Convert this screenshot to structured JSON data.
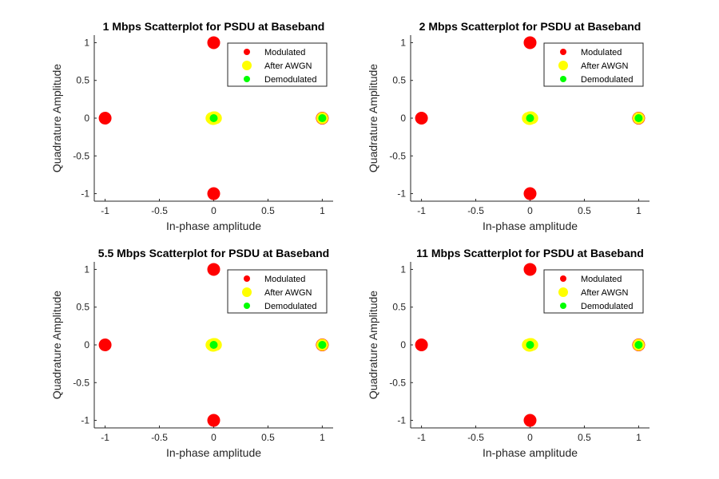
{
  "colors": {
    "modulated": "#ff0000",
    "after_awgn": "#ffff00",
    "demodulated": "#00ff00",
    "axis": "#262626"
  },
  "chart_data": [
    {
      "type": "scatter",
      "title": "1 Mbps Scatterplot for PSDU at Baseband",
      "xlabel": "In-phase amplitude",
      "ylabel": "Quadrature Amplitude",
      "xlim": [
        -1.1,
        1.1
      ],
      "ylim": [
        -1.1,
        1.1
      ],
      "xticks": [
        -1,
        -0.5,
        0,
        0.5,
        1
      ],
      "yticks": [
        -1,
        -0.5,
        0,
        0.5,
        1
      ],
      "xtick_labels": [
        "-1",
        "-0.5",
        "0",
        "0.5",
        "1"
      ],
      "ytick_labels": [
        "-1",
        "-0.5",
        "0",
        "0.5",
        "1"
      ],
      "grid": false,
      "legend": "top-right",
      "series": [
        {
          "name": "Modulated",
          "color": "#ff0000",
          "points": [
            [
              -1,
              0
            ],
            [
              1,
              0
            ],
            [
              0,
              1
            ],
            [
              0,
              -1
            ]
          ]
        },
        {
          "name": "After AWGN",
          "color": "#ffff00",
          "points": [
            [
              -0.02,
              0
            ],
            [
              0,
              0.01
            ],
            [
              0.02,
              0
            ],
            [
              0,
              -0.01
            ],
            [
              0.01,
              0.01
            ],
            [
              -0.01,
              -0.01
            ],
            [
              1,
              0
            ]
          ]
        },
        {
          "name": "Demodulated",
          "color": "#00ff00",
          "points": [
            [
              0,
              0
            ],
            [
              1,
              0
            ]
          ]
        }
      ]
    },
    {
      "type": "scatter",
      "title": "2 Mbps Scatterplot for PSDU at Baseband",
      "xlabel": "In-phase amplitude",
      "ylabel": "Quadrature Amplitude",
      "xlim": [
        -1.1,
        1.1
      ],
      "ylim": [
        -1.1,
        1.1
      ],
      "xticks": [
        -1,
        -0.5,
        0,
        0.5,
        1
      ],
      "yticks": [
        -1,
        -0.5,
        0,
        0.5,
        1
      ],
      "xtick_labels": [
        "-1",
        "-0.5",
        "0",
        "0.5",
        "1"
      ],
      "ytick_labels": [
        "-1",
        "-0.5",
        "0",
        "0.5",
        "1"
      ],
      "grid": false,
      "legend": "top-right",
      "series": [
        {
          "name": "Modulated",
          "color": "#ff0000",
          "points": [
            [
              -1,
              0
            ],
            [
              1,
              0
            ],
            [
              0,
              1
            ],
            [
              0,
              -1
            ]
          ]
        },
        {
          "name": "After AWGN",
          "color": "#ffff00",
          "points": [
            [
              -0.02,
              0
            ],
            [
              0,
              0.01
            ],
            [
              0.02,
              0
            ],
            [
              0,
              -0.01
            ],
            [
              0.01,
              0.01
            ],
            [
              -0.01,
              -0.01
            ],
            [
              1,
              0
            ]
          ]
        },
        {
          "name": "Demodulated",
          "color": "#00ff00",
          "points": [
            [
              0,
              0
            ],
            [
              1,
              0
            ]
          ]
        }
      ]
    },
    {
      "type": "scatter",
      "title": "5.5 Mbps Scatterplot for PSDU at Baseband",
      "xlabel": "In-phase amplitude",
      "ylabel": "Quadrature Amplitude",
      "xlim": [
        -1.1,
        1.1
      ],
      "ylim": [
        -1.1,
        1.1
      ],
      "xticks": [
        -1,
        -0.5,
        0,
        0.5,
        1
      ],
      "yticks": [
        -1,
        -0.5,
        0,
        0.5,
        1
      ],
      "xtick_labels": [
        "-1",
        "-0.5",
        "0",
        "0.5",
        "1"
      ],
      "ytick_labels": [
        "-1",
        "-0.5",
        "0",
        "0.5",
        "1"
      ],
      "grid": false,
      "legend": "top-right",
      "series": [
        {
          "name": "Modulated",
          "color": "#ff0000",
          "points": [
            [
              -1,
              0
            ],
            [
              1,
              0
            ],
            [
              0,
              1
            ],
            [
              0,
              -1
            ]
          ]
        },
        {
          "name": "After AWGN",
          "color": "#ffff00",
          "points": [
            [
              -0.02,
              0
            ],
            [
              0,
              0.01
            ],
            [
              0.02,
              0
            ],
            [
              0,
              -0.01
            ],
            [
              0.01,
              0.01
            ],
            [
              -0.01,
              -0.01
            ],
            [
              1,
              0
            ]
          ]
        },
        {
          "name": "Demodulated",
          "color": "#00ff00",
          "points": [
            [
              0,
              0
            ],
            [
              1,
              0
            ]
          ]
        }
      ]
    },
    {
      "type": "scatter",
      "title": "11 Mbps Scatterplot for PSDU at Baseband",
      "xlabel": "In-phase amplitude",
      "ylabel": "Quadrature Amplitude",
      "xlim": [
        -1.1,
        1.1
      ],
      "ylim": [
        -1.1,
        1.1
      ],
      "xticks": [
        -1,
        -0.5,
        0,
        0.5,
        1
      ],
      "yticks": [
        -1,
        -0.5,
        0,
        0.5,
        1
      ],
      "xtick_labels": [
        "-1",
        "-0.5",
        "0",
        "0.5",
        "1"
      ],
      "ytick_labels": [
        "-1",
        "-0.5",
        "0",
        "0.5",
        "1"
      ],
      "grid": false,
      "legend": "top-right",
      "series": [
        {
          "name": "Modulated",
          "color": "#ff0000",
          "points": [
            [
              -1,
              0
            ],
            [
              1,
              0
            ],
            [
              0,
              1
            ],
            [
              0,
              -1
            ]
          ]
        },
        {
          "name": "After AWGN",
          "color": "#ffff00",
          "points": [
            [
              -0.02,
              0
            ],
            [
              0,
              0.01
            ],
            [
              0.02,
              0
            ],
            [
              0,
              -0.01
            ],
            [
              0.01,
              0.01
            ],
            [
              -0.01,
              -0.01
            ],
            [
              1,
              0
            ]
          ]
        },
        {
          "name": "Demodulated",
          "color": "#00ff00",
          "points": [
            [
              0,
              0
            ],
            [
              1,
              0
            ]
          ]
        }
      ]
    }
  ]
}
